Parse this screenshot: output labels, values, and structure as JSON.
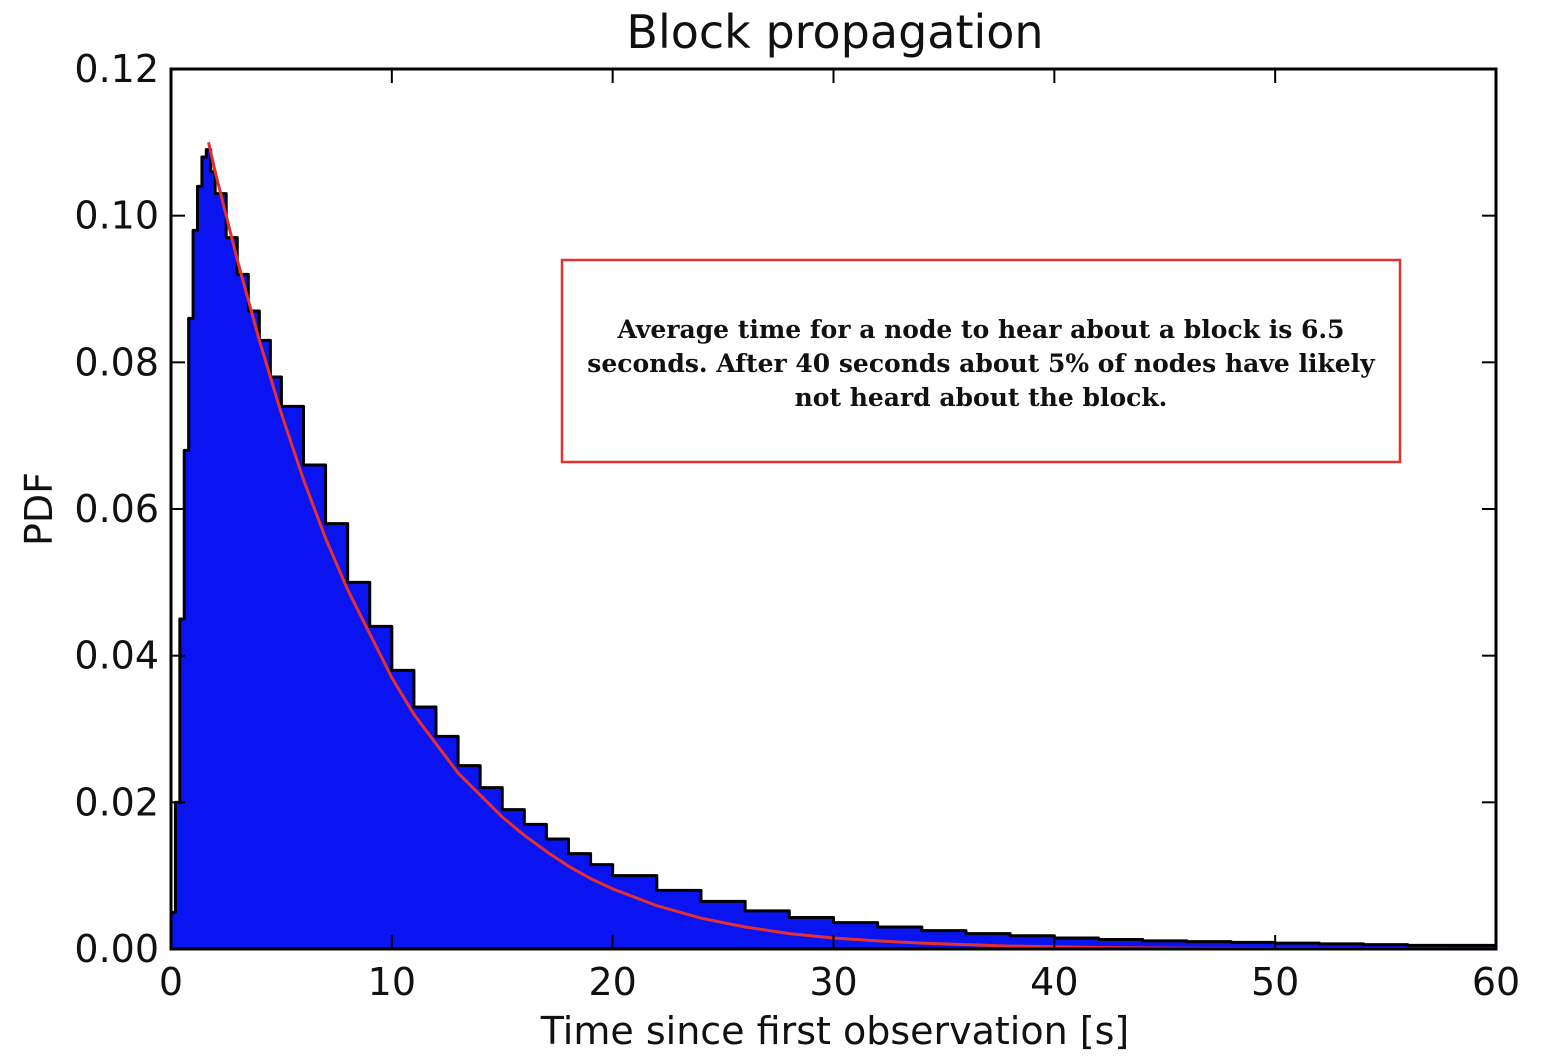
{
  "chart_data": {
    "type": "area",
    "title": "Block propagation",
    "xlabel": "Time since first observation [s]",
    "ylabel": "PDF",
    "xlim": [
      0,
      60
    ],
    "ylim": [
      0,
      0.12
    ],
    "x_ticks": [
      "0",
      "10",
      "20",
      "30",
      "40",
      "50",
      "60"
    ],
    "y_ticks": [
      "0.00",
      "0.02",
      "0.04",
      "0.06",
      "0.08",
      "0.10",
      "0.12"
    ],
    "grid": false,
    "legend": "none",
    "series": [
      {
        "kind": "histogram",
        "color": "#0a14f0",
        "edge_color": "#000000",
        "x": [
          0,
          0.2,
          0.4,
          0.6,
          0.8,
          1.0,
          1.2,
          1.4,
          1.6,
          1.8,
          2.0,
          2.5,
          3,
          3.5,
          4,
          4.5,
          5,
          6,
          7,
          8,
          9,
          10,
          11,
          12,
          13,
          14,
          15,
          16,
          17,
          18,
          19,
          20,
          22,
          24,
          26,
          28,
          30,
          32,
          34,
          36,
          38,
          40,
          42,
          44,
          46,
          48,
          50,
          52,
          54,
          56,
          58,
          60
        ],
        "y": [
          0.005,
          0.02,
          0.045,
          0.068,
          0.086,
          0.098,
          0.104,
          0.108,
          0.109,
          0.106,
          0.103,
          0.097,
          0.092,
          0.087,
          0.083,
          0.078,
          0.074,
          0.066,
          0.058,
          0.05,
          0.044,
          0.038,
          0.033,
          0.029,
          0.025,
          0.022,
          0.019,
          0.017,
          0.015,
          0.013,
          0.0115,
          0.01,
          0.008,
          0.0065,
          0.0052,
          0.0043,
          0.0036,
          0.003,
          0.0025,
          0.0021,
          0.0018,
          0.0015,
          0.0013,
          0.0011,
          0.001,
          0.0009,
          0.0008,
          0.0007,
          0.0006,
          0.0005,
          0.0005,
          0.0004
        ]
      },
      {
        "kind": "fit",
        "color": "#e53030",
        "x": [
          1.7,
          2,
          3,
          4,
          5,
          6,
          7,
          8,
          9,
          10,
          11,
          12,
          13,
          14,
          15,
          16,
          17,
          18,
          19,
          20,
          22,
          24,
          26,
          28,
          30,
          32,
          34,
          36,
          38,
          40,
          42,
          44,
          46,
          48,
          50,
          52,
          54,
          56,
          58,
          60
        ],
        "y": [
          0.11,
          0.106,
          0.094,
          0.083,
          0.073,
          0.064,
          0.056,
          0.049,
          0.043,
          0.037,
          0.032,
          0.028,
          0.024,
          0.021,
          0.018,
          0.0155,
          0.0133,
          0.0113,
          0.0096,
          0.0082,
          0.0059,
          0.0042,
          0.003,
          0.0021,
          0.0015,
          0.0011,
          0.0008,
          0.0006,
          0.0004,
          0.0003,
          0.0002,
          0.00015,
          0.0001,
          8e-05,
          6e-05,
          5e-05,
          4e-05,
          3e-05,
          2e-05,
          2e-05
        ]
      }
    ],
    "annotation": {
      "lines": [
        "Average time for a node to hear about a block is 6.5",
        "seconds. After 40 seconds about 5% of nodes have likely",
        "not heard about the block."
      ],
      "border_color": "#e53030"
    }
  }
}
